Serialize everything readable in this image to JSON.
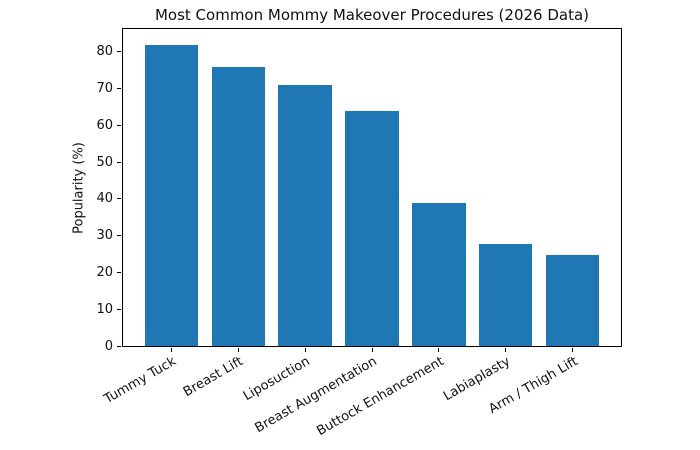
{
  "chart_data": {
    "type": "bar",
    "title": "Most Common Mommy Makeover Procedures (2026 Data)",
    "xlabel": "",
    "ylabel": "Popularity (%)",
    "categories": [
      "Tummy Tuck",
      "Breast Lift",
      "Liposuction",
      "Breast Augmentation",
      "Buttock Enhancement",
      "Labiaplasty",
      "Arm / Thigh Lift"
    ],
    "values": [
      82,
      76,
      71,
      64,
      39,
      28,
      25
    ],
    "yticks": [
      0,
      10,
      20,
      30,
      40,
      50,
      60,
      70,
      80
    ],
    "ylim": [
      0,
      86.5
    ],
    "bar_color": "#1f77b4",
    "axis_color": "#000000",
    "grid": false,
    "legend_position": "none"
  }
}
